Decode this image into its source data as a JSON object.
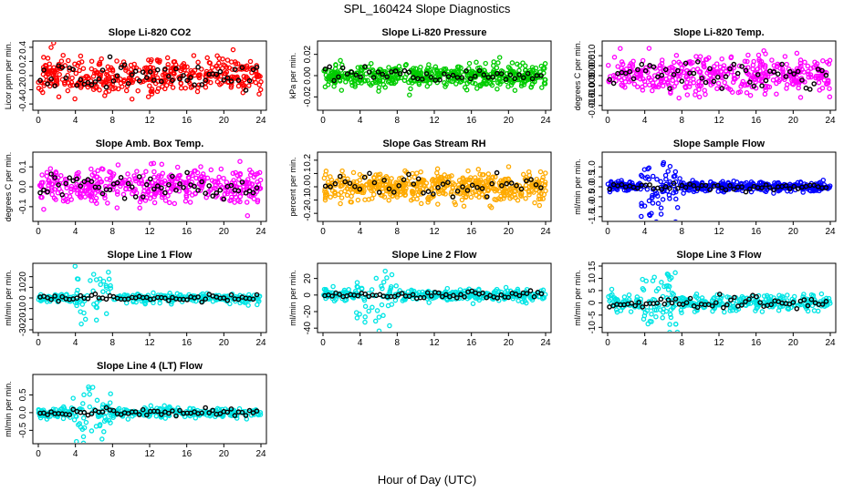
{
  "figure": {
    "title": "SPL_160424  Slope Diagnostics",
    "xlabel": "Hour of Day (UTC)"
  },
  "chart_data": [
    {
      "type": "scatter",
      "title": "Slope Li-820 CO2",
      "ylabel": "Licor ppm per min.",
      "color": "#ff0000",
      "xlim": [
        0,
        24
      ],
      "ylim": [
        -0.45,
        0.45
      ],
      "xticks": [
        "0",
        "4",
        "8",
        "12",
        "16",
        "20",
        "24"
      ],
      "yticks": [
        -0.4,
        -0.2,
        0.0,
        0.2,
        0.4
      ],
      "ytick_labels": [
        "-0.4",
        "-0.2",
        "0.0",
        "0.2",
        "0.4"
      ],
      "spread": 0.13,
      "n_points": 420,
      "n_black": 60,
      "disturbance": 0,
      "seed": 11
    },
    {
      "type": "scatter",
      "title": "Slope Li-820 Pressure",
      "ylabel": "kPa per min.",
      "color": "#00cc00",
      "xlim": [
        0,
        24
      ],
      "ylim": [
        -0.03,
        0.03
      ],
      "xticks": [
        "0",
        "4",
        "8",
        "12",
        "16",
        "20",
        "24"
      ],
      "yticks": [
        -0.02,
        0.0,
        0.02
      ],
      "ytick_labels": [
        "-0.02",
        "0.00",
        "0.02"
      ],
      "spread": 0.005,
      "n_points": 500,
      "n_black": 50,
      "disturbance": 0,
      "seed": 23
    },
    {
      "type": "scatter",
      "title": "Slope Li-820 Temp.",
      "ylabel": "degrees C per min.",
      "color": "#ff00ff",
      "xlim": [
        0,
        24
      ],
      "ylim": [
        -0.016,
        0.016
      ],
      "xticks": [
        "0",
        "4",
        "8",
        "12",
        "16",
        "20",
        "24"
      ],
      "yticks": [
        -0.015,
        -0.01,
        -0.005,
        0.0,
        0.005,
        0.01
      ],
      "ytick_labels": [
        "-0.015",
        "-0.010",
        "-0.005",
        "0.000",
        "0.005",
        "0.010"
      ],
      "spread": 0.0045,
      "n_points": 420,
      "n_black": 55,
      "disturbance": 0,
      "seed": 37
    },
    {
      "type": "scatter",
      "title": "Slope Amb. Box Temp.",
      "ylabel": "degrees C per min.",
      "color": "#ff00ff",
      "xlim": [
        0,
        24
      ],
      "ylim": [
        -0.16,
        0.16
      ],
      "xticks": [
        "0",
        "4",
        "8",
        "12",
        "16",
        "20",
        "24"
      ],
      "yticks": [
        -0.1,
        0.0,
        0.1
      ],
      "ytick_labels": [
        "-0.1",
        "0.0",
        "0.1"
      ],
      "spread": 0.045,
      "n_points": 420,
      "n_black": 60,
      "disturbance": 0,
      "seed": 41
    },
    {
      "type": "scatter",
      "title": "Slope Gas Stream RH",
      "ylabel": "percent per min.",
      "color": "#ffaa00",
      "xlim": [
        0,
        24
      ],
      "ylim": [
        -0.24,
        0.24
      ],
      "xticks": [
        "0",
        "4",
        "8",
        "12",
        "16",
        "20",
        "24"
      ],
      "yticks": [
        -0.2,
        -0.1,
        0.0,
        0.1,
        0.2
      ],
      "ytick_labels": [
        "-0.2",
        "-0.1",
        "0.0",
        "0.1",
        "0.2"
      ],
      "spread": 0.055,
      "n_points": 520,
      "n_black": 45,
      "disturbance": 0,
      "seed": 53
    },
    {
      "type": "scatter",
      "title": "Slope Sample Flow",
      "ylabel": "ml/min per min.",
      "color": "#0000ff",
      "xlim": [
        0,
        24
      ],
      "ylim": [
        -1.6,
        1.6
      ],
      "xticks": [
        "0",
        "4",
        "8",
        "12",
        "16",
        "20",
        "24"
      ],
      "yticks": [
        -1.5,
        -1.0,
        -0.5,
        0.0,
        0.5,
        1.0
      ],
      "ytick_labels": [
        "-1.5",
        "-1.0",
        "-0.5",
        "0.0",
        "0.5",
        "1.0"
      ],
      "spread": 0.12,
      "n_points": 440,
      "n_black": 55,
      "disturbance": 1.2,
      "seed": 67
    },
    {
      "type": "scatter",
      "title": "Slope Line 1 Flow",
      "ylabel": "ml/min per min.",
      "color": "#00e5e5",
      "xlim": [
        0,
        24
      ],
      "ylim": [
        -30,
        30
      ],
      "xticks": [
        "0",
        "4",
        "8",
        "12",
        "16",
        "20",
        "24"
      ],
      "yticks": [
        -30,
        -20,
        -10,
        0,
        10,
        20
      ],
      "ytick_labels": [
        "-30",
        "-20",
        "-10",
        "0",
        "10",
        "20"
      ],
      "spread": 2.2,
      "n_points": 300,
      "n_black": 60,
      "disturbance": 26,
      "seed": 71
    },
    {
      "type": "scatter",
      "title": "Slope Line 2 Flow",
      "ylabel": "ml/min per min.",
      "color": "#00e5e5",
      "xlim": [
        0,
        24
      ],
      "ylim": [
        -42,
        35
      ],
      "xticks": [
        "0",
        "4",
        "8",
        "12",
        "16",
        "20",
        "24"
      ],
      "yticks": [
        -40,
        -20,
        0,
        20
      ],
      "ytick_labels": [
        "-40",
        "-20",
        "0",
        "20"
      ],
      "spread": 3.5,
      "n_points": 340,
      "n_black": 60,
      "disturbance": 30,
      "seed": 83
    },
    {
      "type": "scatter",
      "title": "Slope Line 3 Flow",
      "ylabel": "ml/min per min.",
      "color": "#00e5e5",
      "xlim": [
        0,
        24
      ],
      "ylim": [
        -11,
        15
      ],
      "xticks": [
        "0",
        "4",
        "8",
        "12",
        "16",
        "20",
        "24"
      ],
      "yticks": [
        -10,
        -5,
        0,
        5,
        10,
        15
      ],
      "ytick_labels": [
        "-10",
        "-5",
        "0",
        "5",
        "10",
        "15"
      ],
      "spread": 1.8,
      "n_points": 360,
      "n_black": 60,
      "disturbance": 9,
      "seed": 97
    },
    {
      "type": "scatter",
      "title": "Slope Line 4 (LT) Flow",
      "ylabel": "ml/min per min.",
      "color": "#00e5e5",
      "xlim": [
        0,
        24
      ],
      "ylim": [
        -0.8,
        1.0
      ],
      "xticks": [
        "0",
        "4",
        "8",
        "12",
        "16",
        "20",
        "24"
      ],
      "yticks": [
        -0.5,
        0.0,
        0.5
      ],
      "ytick_labels": [
        "-0.5",
        "0.0",
        "0.5"
      ],
      "spread": 0.07,
      "n_points": 340,
      "n_black": 60,
      "disturbance": 0.75,
      "seed": 101
    }
  ]
}
